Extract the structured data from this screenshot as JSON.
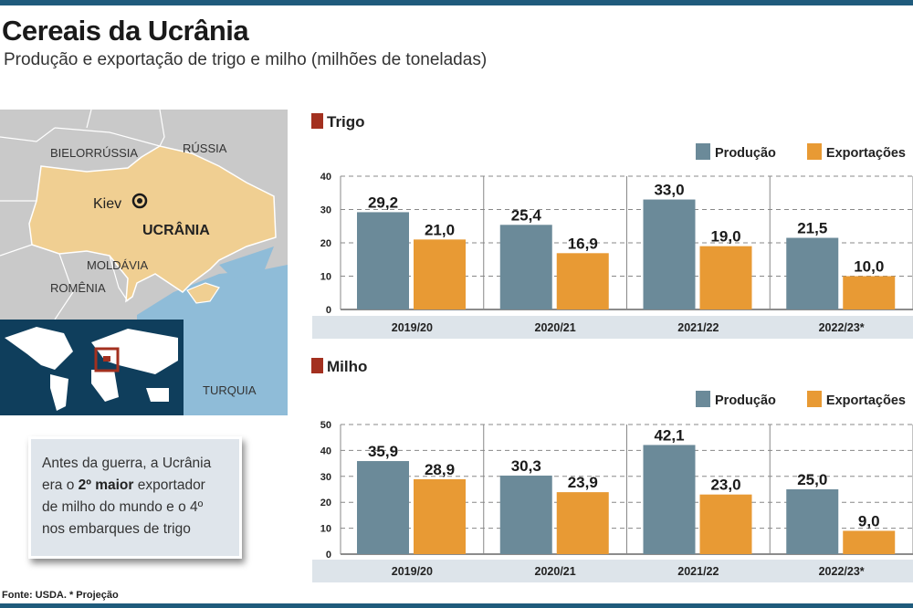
{
  "title": "Cereais da Ucrânia",
  "subtitle": "Produção e exportação de trigo e milho (milhões de toneladas)",
  "map": {
    "labels": {
      "belarus": "BIELORRÚSSIA",
      "russia": "RÚSSIA",
      "capital": "Kiev",
      "ukraine": "UCRÂNIA",
      "moldova": "MOLDÁVIA",
      "romania": "ROMÊNIA",
      "turkey": "TURQUIA"
    },
    "colors": {
      "ukraine": "#f0cf92",
      "neighbors": "#c9c9c9",
      "sea": "#8fbcd8",
      "world_ocean": "#0f3e5c",
      "highlight": "#a3301f"
    }
  },
  "note": {
    "line1": "Antes da guerra, a Ucrânia",
    "line2_a": "era o ",
    "line2_b": "2º maior",
    "line2_c": " exportador",
    "line3": "de milho do mundo e o 4º",
    "line4": "nos embarques de trigo"
  },
  "source": "Fonte: USDA. * Projeção",
  "colors": {
    "producao": "#6b8a99",
    "exportacoes": "#e89a34",
    "section_marker": "#a3301f",
    "category_band": "#dde4ea"
  },
  "chart_data": [
    {
      "type": "bar",
      "title": "Trigo",
      "categories": [
        "2019/20",
        "2020/21",
        "2021/22",
        "2022/23*"
      ],
      "series": [
        {
          "name": "Produção",
          "values": [
            29.2,
            25.4,
            33.0,
            21.5
          ],
          "labels": [
            "29,2",
            "25,4",
            "33,0",
            "21,5"
          ]
        },
        {
          "name": "Exportações",
          "values": [
            21.0,
            16.9,
            19.0,
            10.0
          ],
          "labels": [
            "21,0",
            "16,9",
            "19,0",
            "10,0"
          ]
        }
      ],
      "ylim": [
        0,
        40
      ],
      "yticks": [
        0,
        10,
        20,
        30,
        40
      ],
      "grid": true,
      "legend": "top-right"
    },
    {
      "type": "bar",
      "title": "Milho",
      "categories": [
        "2019/20",
        "2020/21",
        "2021/22",
        "2022/23*"
      ],
      "series": [
        {
          "name": "Produção",
          "values": [
            35.9,
            30.3,
            42.1,
            25.0
          ],
          "labels": [
            "35,9",
            "30,3",
            "42,1",
            "25,0"
          ]
        },
        {
          "name": "Exportações",
          "values": [
            28.9,
            23.9,
            23.0,
            9.0
          ],
          "labels": [
            "28,9",
            "23,9",
            "23,0",
            "9,0"
          ]
        }
      ],
      "ylim": [
        0,
        50
      ],
      "yticks": [
        0,
        10,
        20,
        30,
        40,
        50
      ],
      "grid": true,
      "legend": "top-right"
    }
  ]
}
